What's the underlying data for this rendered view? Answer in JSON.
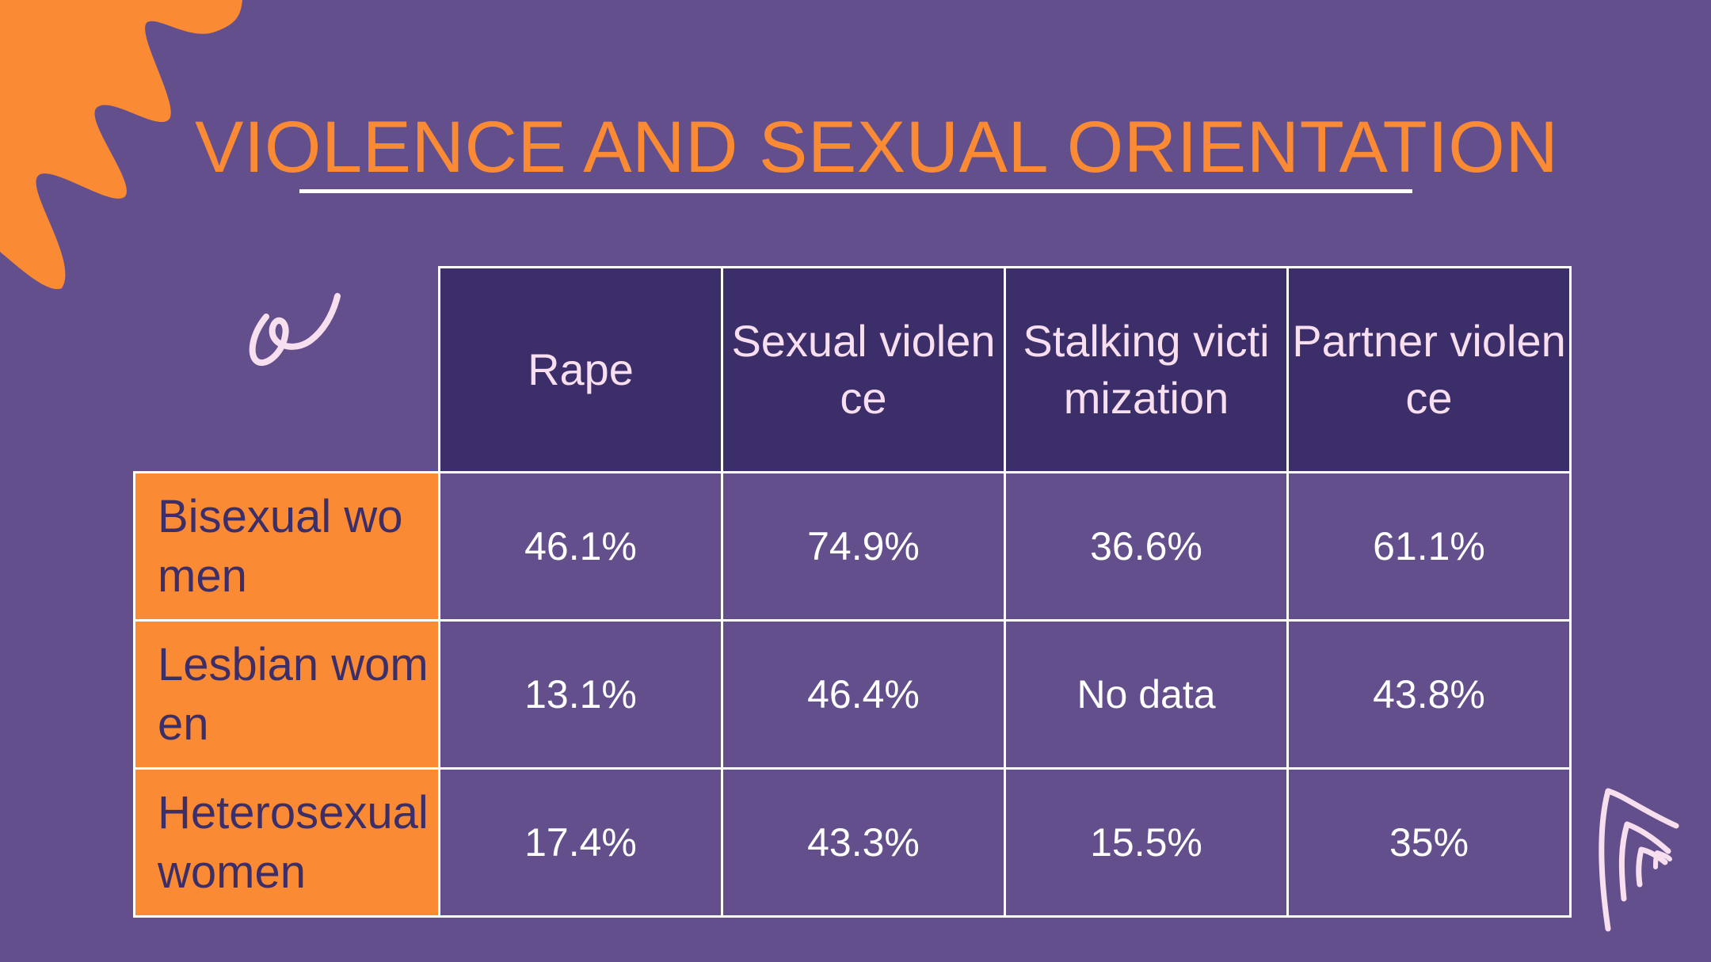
{
  "slide": {
    "title": "VIOLENCE AND SEXUAL ORIENTATION"
  },
  "colors": {
    "background": "#634f8c",
    "accent_orange": "#fb8a35",
    "header_dark": "#3b2e69",
    "header_text": "#f8dff0",
    "doodle_pink": "#f8dff0",
    "grid_line": "#ffffff"
  },
  "decorations": {
    "top_left": "orange-sun-burst",
    "upper_left": "pink-squiggle-icon",
    "bottom_right": "pink-lines-doodle"
  },
  "table": {
    "columns": [
      "Rape",
      "Sexual violence",
      "Stalking victimization",
      "Partner violence"
    ],
    "rows": [
      {
        "label": "Bisexual women",
        "values": [
          "46.1%",
          "74.9%",
          "36.6%",
          "61.1%"
        ]
      },
      {
        "label": "Lesbian women",
        "values": [
          "13.1%",
          "46.4%",
          "No data",
          "43.8%"
        ]
      },
      {
        "label": "Heterosexual women",
        "values": [
          "17.4%",
          "43.3%",
          "15.5%",
          "35%"
        ]
      }
    ]
  }
}
